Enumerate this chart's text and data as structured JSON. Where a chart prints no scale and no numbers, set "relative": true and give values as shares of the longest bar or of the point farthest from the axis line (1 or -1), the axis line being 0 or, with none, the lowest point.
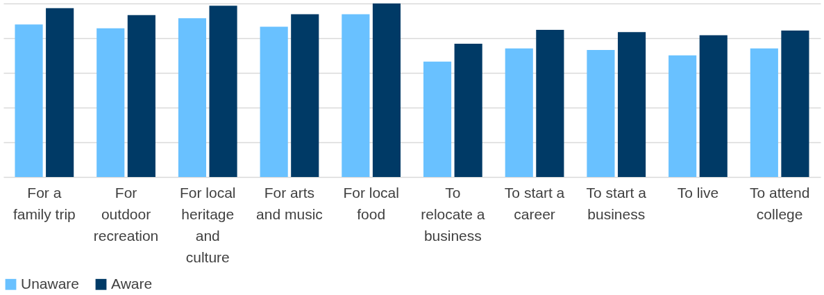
{
  "chart_data": {
    "type": "bar",
    "relative": true,
    "grid": "y",
    "legend": "bottom",
    "categories": [
      "For a\nfamily trip",
      "For\noutdoor\nrecreation",
      "For local\nheritage\nand\nculture",
      "For arts\nand music",
      "For local\nfood",
      "To\nrelocate a\nbusiness",
      "To start a\ncareer",
      "To start a\nbusiness",
      "To live",
      "To attend\ncollege"
    ],
    "series": [
      {
        "name": "Unaware",
        "color": "#69c1ff",
        "values": [
          0.879,
          0.857,
          0.915,
          0.866,
          0.938,
          0.665,
          0.741,
          0.732,
          0.701,
          0.741
        ]
      },
      {
        "name": "Aware",
        "color": "#003a66",
        "values": [
          0.973,
          0.933,
          0.987,
          0.938,
          1,
          0.768,
          0.848,
          0.835,
          0.817,
          0.844
        ]
      }
    ]
  }
}
